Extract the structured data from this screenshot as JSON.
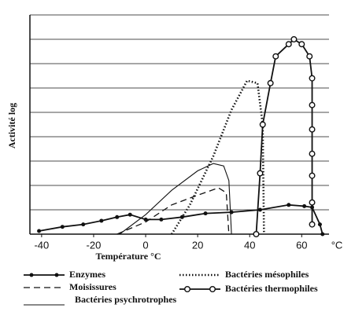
{
  "chart_data": {
    "type": "line",
    "y_label": "Activité log",
    "x_label": "Température °C",
    "x_unit": "°C",
    "xlim": [
      -44.5,
      70.5
    ],
    "xticks": [
      -40,
      -20,
      0,
      20,
      40,
      60
    ],
    "ylim": [
      0,
      9
    ],
    "ygrid": [
      1,
      2,
      3,
      4,
      5,
      6,
      7,
      8,
      9
    ],
    "color": "#111111",
    "series": [
      {
        "name": "Enzymes",
        "dash": "solid",
        "marker": "dot",
        "x": [
          -41,
          -32,
          -24,
          -17,
          -11,
          -6,
          0,
          6,
          14,
          23,
          33,
          44,
          55,
          61,
          64,
          67,
          68
        ],
        "values": [
          0.13,
          0.3,
          0.4,
          0.55,
          0.7,
          0.8,
          0.6,
          0.6,
          0.7,
          0.85,
          0.9,
          1.0,
          1.2,
          1.15,
          1.1,
          0.4,
          0
        ]
      },
      {
        "name": "Moisissures",
        "dash": "dashed",
        "marker": "none",
        "x": [
          -11,
          0,
          10,
          20,
          28,
          31,
          32
        ],
        "values": [
          0,
          0.5,
          1.2,
          1.6,
          1.9,
          1.7,
          0
        ]
      },
      {
        "name": "Bactéries psychrotrophes",
        "dash": "thin",
        "marker": "none",
        "x": [
          -10,
          0,
          10,
          20,
          26,
          30,
          32,
          33
        ],
        "values": [
          0,
          0.8,
          1.8,
          2.6,
          2.9,
          2.8,
          2.2,
          0
        ]
      },
      {
        "name": "Bactéries mésophiles",
        "dash": "dotted",
        "marker": "none",
        "x": [
          10,
          17,
          26,
          33,
          39,
          43,
          45,
          45.5
        ],
        "values": [
          0,
          1.2,
          3.2,
          5.1,
          6.3,
          6.2,
          4.5,
          0
        ]
      },
      {
        "name": "Bactéries thermophiles",
        "dash": "solid",
        "marker": "circle",
        "x": [
          42.5,
          44,
          45,
          48,
          50,
          55,
          57,
          60,
          63,
          64,
          64,
          64,
          64,
          64,
          64,
          64
        ],
        "values": [
          0,
          2.5,
          4.5,
          6.2,
          7.3,
          7.8,
          8.0,
          7.8,
          7.3,
          6.4,
          5.3,
          4.3,
          3.3,
          2.4,
          1.3,
          0.4
        ]
      }
    ]
  }
}
